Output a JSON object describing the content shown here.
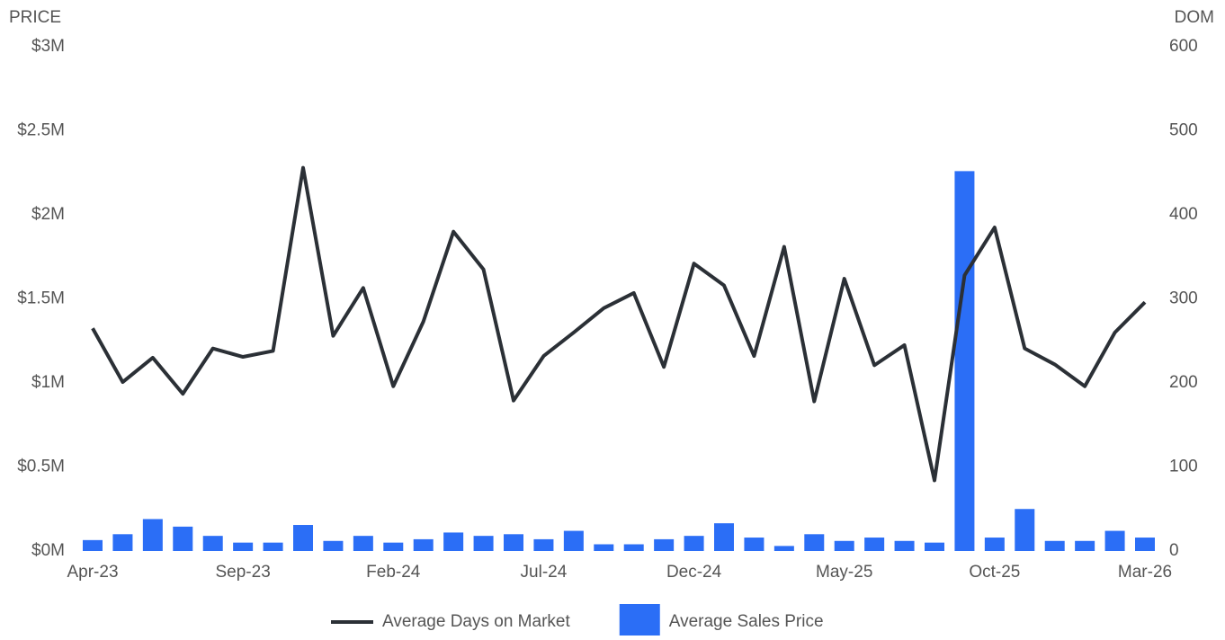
{
  "chart_data": {
    "type": "combo",
    "y_title": "PRICE",
    "y2_title": "DOM",
    "categories": [
      "Apr-23",
      null,
      null,
      null,
      null,
      "Sep-23",
      null,
      null,
      null,
      null,
      "Feb-24",
      null,
      null,
      null,
      null,
      "Jul-24",
      null,
      null,
      null,
      null,
      "Dec-24",
      null,
      null,
      null,
      null,
      "May-25",
      null,
      null,
      null,
      null,
      "Oct-25",
      null,
      null,
      null,
      null,
      "Mar-26"
    ],
    "series": [
      {
        "name": "Average Days on Market",
        "type": "line",
        "axis": "y2",
        "color": "#2b3036",
        "values": [
          265,
          201,
          230,
          187,
          241,
          231,
          238,
          456,
          256,
          313,
          196,
          273,
          380,
          335,
          179,
          232,
          260,
          289,
          307,
          219,
          342,
          316,
          232,
          362,
          178,
          324,
          221,
          245,
          84,
          328,
          385,
          241,
          222,
          196,
          260,
          296
        ]
      },
      {
        "name": "Average Sales Price",
        "type": "bar",
        "color": "#2b6ef6",
        "values": [
          65000,
          100000,
          190000,
          145000,
          90000,
          50000,
          50000,
          155000,
          60000,
          90000,
          50000,
          70000,
          110000,
          90000,
          100000,
          70000,
          120000,
          40000,
          40000,
          70000,
          90000,
          165000,
          80000,
          30000,
          100000,
          60000,
          80000,
          60000,
          50000,
          2260000,
          80000,
          250000,
          60000,
          60000,
          120000,
          80000
        ]
      }
    ],
    "ylim": [
      0,
      3000000
    ],
    "yticks": [
      {
        "value": 0,
        "label": "$0M"
      },
      {
        "value": 500000,
        "label": "$0.5M"
      },
      {
        "value": 1000000,
        "label": "$1M"
      },
      {
        "value": 1500000,
        "label": "$1.5M"
      },
      {
        "value": 2000000,
        "label": "$2M"
      },
      {
        "value": 2500000,
        "label": "$2.5M"
      },
      {
        "value": 3000000,
        "label": "$3M"
      }
    ],
    "y2lim": [
      0,
      600
    ],
    "y2ticks": [
      0,
      100,
      200,
      300,
      400,
      500,
      600
    ],
    "grid": false,
    "legend": "bottom"
  }
}
